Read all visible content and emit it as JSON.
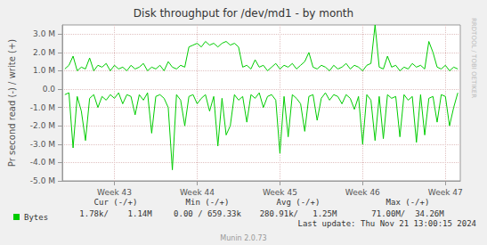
{
  "chart_data": {
    "type": "line",
    "title": "Disk throughput for /dev/md1 - by month",
    "y_label": "Pr second read (-) / write (+)",
    "x": [
      42.4,
      42.45,
      42.5,
      42.55,
      42.6,
      42.65,
      42.7,
      42.75,
      42.8,
      42.85,
      42.9,
      42.95,
      43,
      43.05,
      43.1,
      43.15,
      43.2,
      43.25,
      43.3,
      43.35,
      43.4,
      43.45,
      43.5,
      43.55,
      43.6,
      43.65,
      43.7,
      43.75,
      43.8,
      43.85,
      43.9,
      43.95,
      44,
      44.05,
      44.1,
      44.15,
      44.2,
      44.25,
      44.3,
      44.35,
      44.4,
      44.45,
      44.5,
      44.55,
      44.6,
      44.65,
      44.7,
      44.75,
      44.8,
      44.85,
      44.9,
      44.95,
      45,
      45.05,
      45.1,
      45.15,
      45.2,
      45.25,
      45.3,
      45.35,
      45.4,
      45.45,
      45.5,
      45.55,
      45.6,
      45.65,
      45.7,
      45.75,
      45.8,
      45.85,
      45.9,
      45.95,
      46,
      46.05,
      46.1,
      46.15,
      46.2,
      46.25,
      46.3,
      46.35,
      46.4,
      46.45,
      46.5,
      46.55,
      46.6,
      46.65,
      46.7,
      46.75,
      46.8,
      46.85,
      46.9,
      46.95,
      47,
      47.05,
      47.1,
      47.15
    ],
    "series": [
      {
        "name": "Bytes",
        "color": "#00cc00",
        "values": [
          1100000,
          1300000,
          1800000,
          1000000,
          1200000,
          1100000,
          1700000,
          1000000,
          1300000,
          1200000,
          1400000,
          1000000,
          1300000,
          1100000,
          1200000,
          1000000,
          1300000,
          1100000,
          1200000,
          1400000,
          1000000,
          1200000,
          1100000,
          1300000,
          1000000,
          1500000,
          1200000,
          1100000,
          1300000,
          1200000,
          2300000,
          2400000,
          2500000,
          2300000,
          2600000,
          2400000,
          2500000,
          2300000,
          2500000,
          2600000,
          2400000,
          2500000,
          2300000,
          1200000,
          1300000,
          1100000,
          1600000,
          1200000,
          1300000,
          1000000,
          1200000,
          1400000,
          1100000,
          1300000,
          1200000,
          1400000,
          1100000,
          1300000,
          1500000,
          2000000,
          1200000,
          1100000,
          1300000,
          1200000,
          1000000,
          1300000,
          1100000,
          1200000,
          1400000,
          1100000,
          1300000,
          1200000,
          1000000,
          1300000,
          1400000,
          3500000,
          1200000,
          1100000,
          1800000,
          1200000,
          1300000,
          1000000,
          1200000,
          1100000,
          1400000,
          1200000,
          1300000,
          1100000,
          2600000,
          2000000,
          1200000,
          1100000,
          1300000,
          1000000,
          1200000,
          1100000
        ]
      },
      {
        "name": "Bytes",
        "color": "#00cc00",
        "values": [
          -300000,
          -200000,
          -3200000,
          -400000,
          -1200000,
          -2800000,
          -500000,
          -300000,
          -1000000,
          -400000,
          -600000,
          -300000,
          -500000,
          -200000,
          -800000,
          -300000,
          -400000,
          -1400000,
          -300000,
          -600000,
          -200000,
          -2400000,
          -400000,
          -300000,
          -500000,
          -1000000,
          -4400000,
          -300000,
          -600000,
          -2000000,
          -400000,
          -300000,
          -800000,
          -500000,
          -300000,
          -1200000,
          -400000,
          -3100000,
          -500000,
          -2500000,
          -2000000,
          -300000,
          -600000,
          -400000,
          -1800000,
          -300000,
          -500000,
          -200000,
          -1000000,
          -400000,
          -300000,
          -600000,
          -3500000,
          -400000,
          -2600000,
          -300000,
          -500000,
          -800000,
          -2300000,
          -400000,
          -300000,
          -1700000,
          -500000,
          -200000,
          -600000,
          -300000,
          -400000,
          -800000,
          -300000,
          -500000,
          -1100000,
          -400000,
          -3000000,
          -300000,
          -600000,
          -2800000,
          -400000,
          -2700000,
          -300000,
          -500000,
          -400000,
          -2600000,
          -300000,
          -600000,
          -400000,
          -2900000,
          -300000,
          -2500000,
          -500000,
          -400000,
          -1800000,
          -300000,
          -400000,
          -2000000,
          -1000000,
          -200000
        ]
      }
    ],
    "xlim": [
      42.37,
      47.18
    ],
    "xticks": [
      {
        "value": 43,
        "label": "Week 43"
      },
      {
        "value": 44,
        "label": "Week 44"
      },
      {
        "value": 45,
        "label": "Week 45"
      },
      {
        "value": 46,
        "label": "Week 46"
      },
      {
        "value": 47,
        "label": "Week 47"
      }
    ],
    "ylim": [
      -5000000,
      3500000
    ],
    "yticks": [
      {
        "value": -5000000,
        "label": "-5.0 M"
      },
      {
        "value": -4000000,
        "label": "-4.0 M"
      },
      {
        "value": -3000000,
        "label": "-3.0 M"
      },
      {
        "value": -2000000,
        "label": "-2.0 M"
      },
      {
        "value": -1000000,
        "label": "-1.0 M"
      },
      {
        "value": 0,
        "label": "0.0"
      },
      {
        "value": 1000000,
        "label": "1.0 M"
      },
      {
        "value": 2000000,
        "label": "2.0 M"
      },
      {
        "value": 3000000,
        "label": "3.0 M"
      }
    ],
    "grid": true,
    "legend": "bottom-left",
    "stats": {
      "headers": [
        "Cur (-/+)",
        "Min (-/+)",
        "Avg (-/+)",
        "Max (-/+)"
      ],
      "values": [
        "1.78k/    1.14M",
        "0.00 / 659.33k",
        "280.91k/   1.25M",
        "71.00M/  34.26M"
      ]
    },
    "last_update": "Last update: Thu Nov 21 13:00:15 2024",
    "footer": "Munin 2.0.73",
    "watermark": "RRDTOOL / TOBI OETIKER"
  }
}
